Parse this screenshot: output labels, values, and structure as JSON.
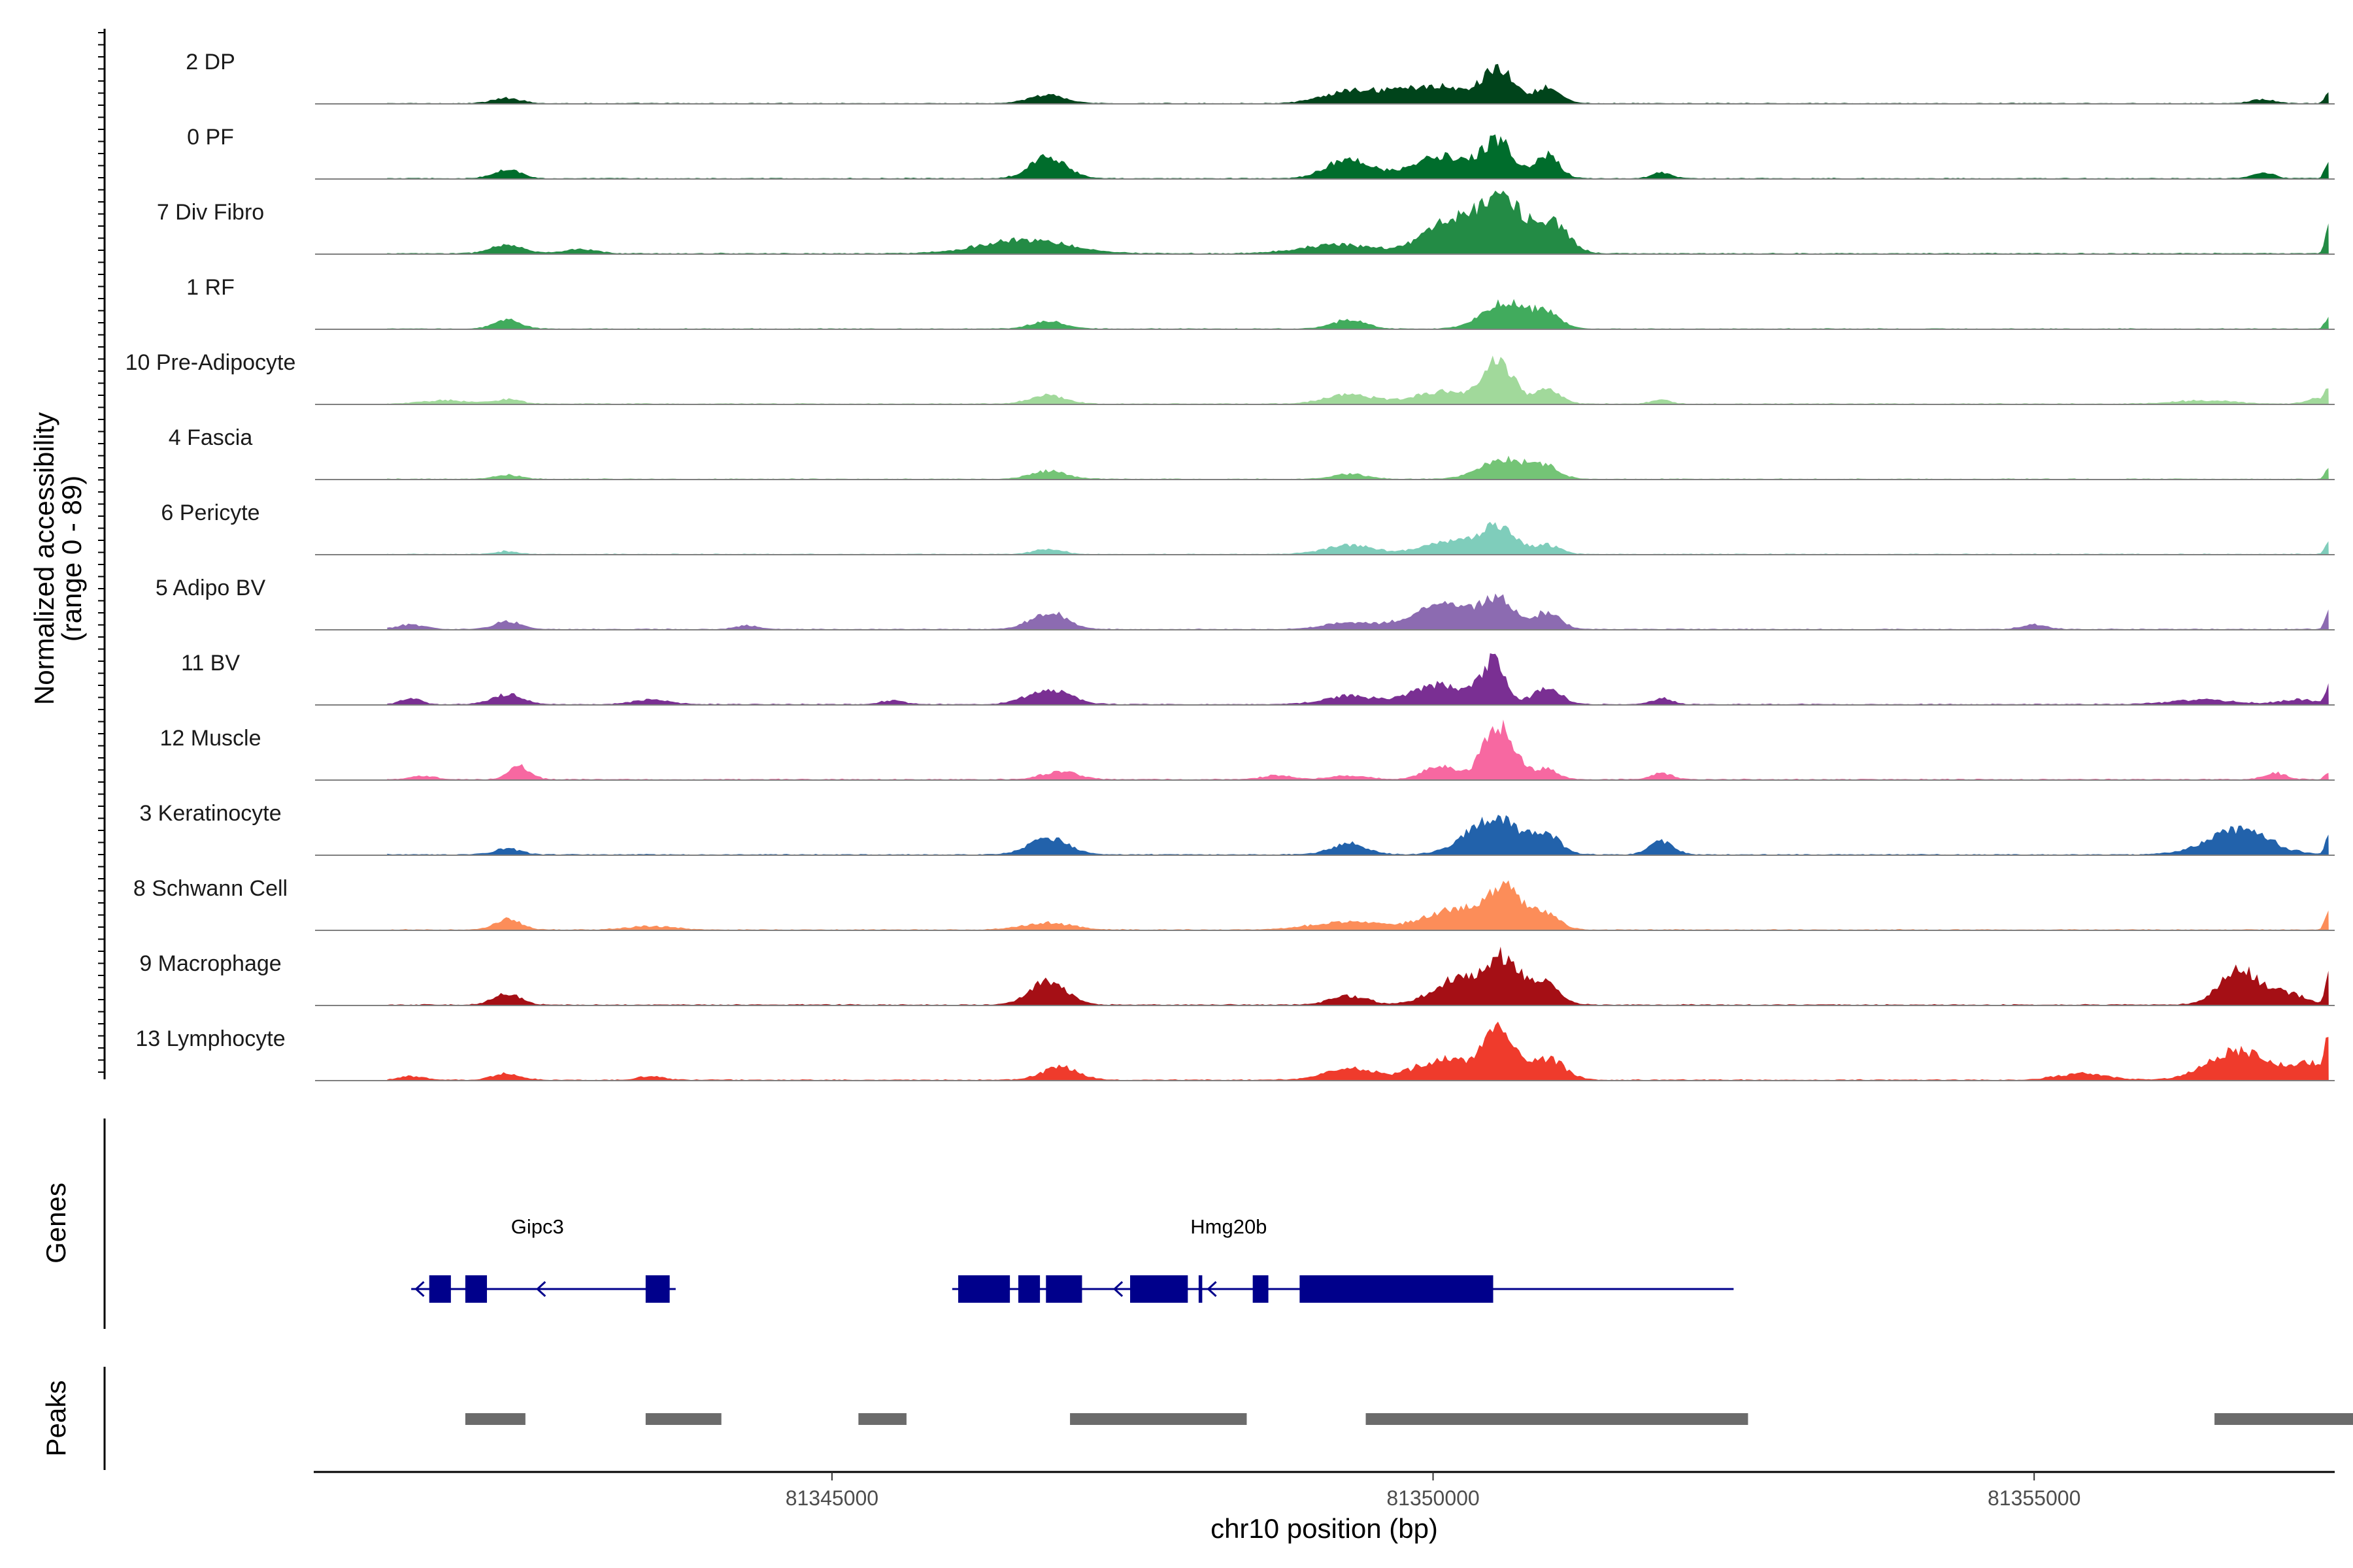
{
  "chart_data": {
    "type": "area",
    "title": "",
    "chromosome": "chr10",
    "xlabel": "chr10 position (bp)",
    "ylabel_line1": "Normalized accessibility",
    "ylabel_line2": "(range 0 - 89)",
    "y_range": [
      0,
      89
    ],
    "x_range": [
      81340700,
      81357500
    ],
    "x_ticks": [
      81345000,
      81350000,
      81355000
    ],
    "x_tick_labels": [
      "81345000",
      "81350000",
      "81355000"
    ],
    "genes_label": "Genes",
    "peaks_label": "Peaks",
    "series": [
      {
        "name": "2 DP",
        "color": "#00441b",
        "scale": 0.72,
        "peaks": [
          [
            81342300,
            120,
            0.1
          ],
          [
            81346800,
            150,
            0.16
          ],
          [
            81349300,
            220,
            0.2
          ],
          [
            81350000,
            350,
            0.35
          ],
          [
            81350550,
            120,
            0.62
          ],
          [
            81350950,
            110,
            0.3
          ],
          [
            81356900,
            100,
            0.08
          ],
          [
            81357450,
            30,
            0.2
          ]
        ]
      },
      {
        "name": "0 PF",
        "color": "#006d2c",
        "scale": 0.8,
        "peaks": [
          [
            81342300,
            110,
            0.16
          ],
          [
            81346800,
            150,
            0.38
          ],
          [
            81349300,
            180,
            0.36
          ],
          [
            81350100,
            260,
            0.4
          ],
          [
            81350550,
            120,
            0.6
          ],
          [
            81350950,
            100,
            0.42
          ],
          [
            81351900,
            80,
            0.1
          ],
          [
            81356900,
            90,
            0.1
          ],
          [
            81357450,
            30,
            0.32
          ]
        ]
      },
      {
        "name": "7 Div Fibro",
        "color": "#238b45",
        "scale": 0.9,
        "peaks": [
          [
            81342300,
            130,
            0.14
          ],
          [
            81342900,
            140,
            0.06
          ],
          [
            81346600,
            350,
            0.22
          ],
          [
            81349200,
            300,
            0.14
          ],
          [
            81350200,
            250,
            0.54
          ],
          [
            81350600,
            160,
            0.8
          ],
          [
            81351000,
            130,
            0.45
          ],
          [
            81357450,
            30,
            0.4
          ]
        ]
      },
      {
        "name": "1 RF",
        "color": "#41ab5d",
        "scale": 0.7,
        "peaks": [
          [
            81342300,
            110,
            0.18
          ],
          [
            81346800,
            150,
            0.14
          ],
          [
            81349300,
            140,
            0.18
          ],
          [
            81350600,
            180,
            0.55
          ],
          [
            81350950,
            110,
            0.3
          ],
          [
            81357450,
            30,
            0.24
          ]
        ]
      },
      {
        "name": "10 Pre-Adipocyte",
        "color": "#a1d99b",
        "scale": 0.8,
        "peaks": [
          [
            81341800,
            200,
            0.06
          ],
          [
            81342300,
            110,
            0.08
          ],
          [
            81346800,
            150,
            0.15
          ],
          [
            81349300,
            200,
            0.16
          ],
          [
            81350100,
            250,
            0.22
          ],
          [
            81350550,
            120,
            0.72
          ],
          [
            81350950,
            110,
            0.24
          ],
          [
            81351900,
            80,
            0.07
          ],
          [
            81356400,
            250,
            0.06
          ],
          [
            81357350,
            80,
            0.1
          ],
          [
            81357450,
            30,
            0.28
          ]
        ]
      },
      {
        "name": "4 Fascia",
        "color": "#74c476",
        "scale": 0.7,
        "peaks": [
          [
            81342300,
            110,
            0.08
          ],
          [
            81346800,
            150,
            0.16
          ],
          [
            81349300,
            150,
            0.1
          ],
          [
            81350600,
            200,
            0.4
          ],
          [
            81350950,
            110,
            0.2
          ],
          [
            81357450,
            30,
            0.2
          ]
        ]
      },
      {
        "name": "6 Pericyte",
        "color": "#7fcdbb",
        "scale": 0.7,
        "peaks": [
          [
            81342300,
            90,
            0.06
          ],
          [
            81346800,
            120,
            0.1
          ],
          [
            81349300,
            200,
            0.18
          ],
          [
            81350200,
            250,
            0.28
          ],
          [
            81350550,
            130,
            0.5
          ],
          [
            81350950,
            110,
            0.18
          ],
          [
            81357450,
            30,
            0.28
          ]
        ]
      },
      {
        "name": "5 Adipo BV",
        "color": "#8c6bb1",
        "scale": 0.8,
        "peaks": [
          [
            81341500,
            120,
            0.08
          ],
          [
            81342300,
            110,
            0.14
          ],
          [
            81344300,
            100,
            0.06
          ],
          [
            81346800,
            150,
            0.3
          ],
          [
            81349300,
            200,
            0.12
          ],
          [
            81350100,
            270,
            0.42
          ],
          [
            81350550,
            130,
            0.45
          ],
          [
            81350950,
            110,
            0.3
          ],
          [
            81355000,
            100,
            0.08
          ],
          [
            81357450,
            30,
            0.3
          ]
        ]
      },
      {
        "name": "11 BV",
        "color": "#7a2f93",
        "scale": 0.85,
        "peaks": [
          [
            81341500,
            80,
            0.1
          ],
          [
            81342300,
            130,
            0.16
          ],
          [
            81343500,
            150,
            0.08
          ],
          [
            81345500,
            100,
            0.06
          ],
          [
            81346800,
            180,
            0.24
          ],
          [
            81349300,
            200,
            0.14
          ],
          [
            81350050,
            230,
            0.32
          ],
          [
            81350500,
            100,
            0.68
          ],
          [
            81350950,
            110,
            0.28
          ],
          [
            81351900,
            80,
            0.1
          ],
          [
            81356400,
            250,
            0.08
          ],
          [
            81357200,
            150,
            0.08
          ],
          [
            81357450,
            30,
            0.32
          ]
        ]
      },
      {
        "name": "12 Muscle",
        "color": "#f768a1",
        "scale": 0.9,
        "peaks": [
          [
            81341600,
            100,
            0.05
          ],
          [
            81342400,
            90,
            0.2
          ],
          [
            81346900,
            150,
            0.12
          ],
          [
            81348700,
            120,
            0.06
          ],
          [
            81349300,
            150,
            0.06
          ],
          [
            81350050,
            130,
            0.2
          ],
          [
            81350550,
            130,
            0.88
          ],
          [
            81350950,
            90,
            0.16
          ],
          [
            81351900,
            80,
            0.1
          ],
          [
            81357000,
            90,
            0.1
          ],
          [
            81357450,
            30,
            0.12
          ]
        ]
      },
      {
        "name": "3 Keratinocyte",
        "color": "#2262ab",
        "scale": 0.85,
        "peaks": [
          [
            81342300,
            110,
            0.1
          ],
          [
            81346800,
            160,
            0.28
          ],
          [
            81349300,
            150,
            0.18
          ],
          [
            81350500,
            220,
            0.62
          ],
          [
            81350950,
            110,
            0.3
          ],
          [
            81351900,
            100,
            0.22
          ],
          [
            81356700,
            250,
            0.42
          ],
          [
            81357450,
            30,
            0.3
          ]
        ]
      },
      {
        "name": "8 Schwann Cell",
        "color": "#fc8d59",
        "scale": 0.8,
        "peaks": [
          [
            81342300,
            110,
            0.18
          ],
          [
            81343500,
            200,
            0.06
          ],
          [
            81346800,
            200,
            0.12
          ],
          [
            81349300,
            300,
            0.14
          ],
          [
            81350200,
            250,
            0.36
          ],
          [
            81350600,
            140,
            0.72
          ],
          [
            81350950,
            110,
            0.28
          ],
          [
            81357450,
            30,
            0.36
          ]
        ]
      },
      {
        "name": "9 Macrophage",
        "color": "#a50f15",
        "scale": 0.9,
        "peaks": [
          [
            81342300,
            110,
            0.18
          ],
          [
            81346800,
            150,
            0.38
          ],
          [
            81349300,
            150,
            0.14
          ],
          [
            81350200,
            200,
            0.4
          ],
          [
            81350600,
            140,
            0.72
          ],
          [
            81350950,
            110,
            0.32
          ],
          [
            81356700,
            160,
            0.56
          ],
          [
            81357100,
            150,
            0.18
          ],
          [
            81357450,
            30,
            0.44
          ]
        ]
      },
      {
        "name": "13 Lymphocyte",
        "color": "#ef3b2c",
        "scale": 0.9,
        "peaks": [
          [
            81341500,
            100,
            0.06
          ],
          [
            81342300,
            110,
            0.1
          ],
          [
            81343500,
            100,
            0.06
          ],
          [
            81346900,
            150,
            0.2
          ],
          [
            81349300,
            200,
            0.18
          ],
          [
            81350100,
            250,
            0.32
          ],
          [
            81350550,
            130,
            0.72
          ],
          [
            81350950,
            140,
            0.34
          ],
          [
            81355400,
            200,
            0.1
          ],
          [
            81356700,
            250,
            0.46
          ],
          [
            81357300,
            150,
            0.26
          ],
          [
            81357450,
            30,
            0.5
          ]
        ]
      }
    ],
    "genes": [
      {
        "name": "Gipc3",
        "start": 81341500,
        "end": 81343700,
        "strand": "-",
        "exons": [
          [
            81341650,
            81341830
          ],
          [
            81341950,
            81342130
          ],
          [
            81343450,
            81343650
          ]
        ],
        "label_pos": 81342550
      },
      {
        "name": "Hmg20b",
        "start": 81346000,
        "end": 81352500,
        "strand": "-",
        "exons": [
          [
            81346050,
            81346480
          ],
          [
            81346550,
            81346730
          ],
          [
            81346780,
            81347080
          ],
          [
            81347480,
            81347960
          ],
          [
            81348050,
            81348080
          ],
          [
            81348500,
            81348630
          ],
          [
            81348890,
            81350500
          ]
        ],
        "label_pos": 81348300
      }
    ],
    "peak_regions": [
      [
        81341950,
        81342450
      ],
      [
        81343450,
        81344080
      ],
      [
        81345220,
        81345620
      ],
      [
        81346980,
        81348450
      ],
      [
        81349440,
        81352620
      ],
      [
        81356500,
        81357700
      ]
    ],
    "gene_color": "#00008b",
    "peak_color": "#6b6b6b"
  }
}
